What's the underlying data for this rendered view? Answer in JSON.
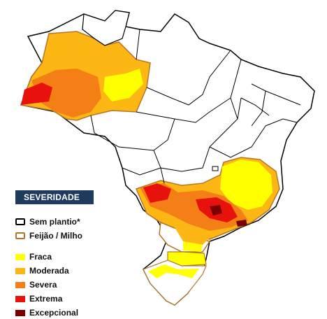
{
  "legend": {
    "title": "SEVERIDADE",
    "outlines": [
      {
        "label": "Sem plantio*",
        "color": "#000000"
      },
      {
        "label": "Feijão / Milho",
        "color": "#b5762a"
      }
    ],
    "classes": [
      {
        "label": "Fraca",
        "color": "#ffff00"
      },
      {
        "label": "Moderada",
        "color": "#fcb714"
      },
      {
        "label": "Severa",
        "color": "#f57f17"
      },
      {
        "label": "Extrema",
        "color": "#e8120c"
      },
      {
        "label": "Excepcional",
        "color": "#7b0000"
      }
    ]
  },
  "colors": {
    "border": "#000000",
    "crop_outline": "#b5762a",
    "background": "#ffffff"
  }
}
